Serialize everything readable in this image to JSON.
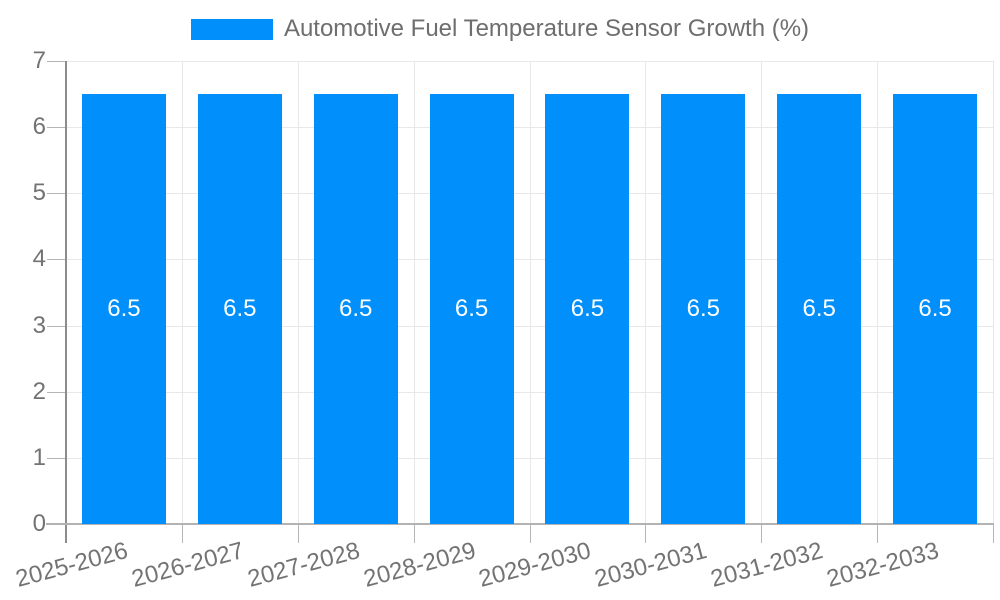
{
  "legend": {
    "label": "Automotive Fuel Temperature Sensor Growth (%)"
  },
  "chart_data": {
    "type": "bar",
    "title": "Automotive Fuel Temperature Sensor Growth (%)",
    "categories": [
      "2025-2026",
      "2026-2027",
      "2027-2028",
      "2028-2029",
      "2029-2030",
      "2030-2031",
      "2031-2032",
      "2032-2033"
    ],
    "series": [
      {
        "name": "Automotive Fuel Temperature Sensor Growth (%)",
        "values": [
          6.5,
          6.5,
          6.5,
          6.5,
          6.5,
          6.5,
          6.5,
          6.5
        ]
      }
    ],
    "value_labels": [
      "6.5",
      "6.5",
      "6.5",
      "6.5",
      "6.5",
      "6.5",
      "6.5",
      "6.5"
    ],
    "xlabel": "",
    "ylabel": "",
    "ylim": [
      0,
      7
    ],
    "yticks": [
      0,
      1,
      2,
      3,
      4,
      5,
      6,
      7
    ],
    "grid": true,
    "legend_position": "top",
    "colors": {
      "bar": "#008FFB",
      "value_label": "#FFFFFF",
      "axis_label": "#737373",
      "legend_text": "#6E6E6E",
      "gridline": "#E8E8E8",
      "tick": "#B5B5B5",
      "y_axis_line": "#8C8C8C",
      "x_axis_line": "#B3B3B3",
      "background": "#FFFFFF"
    }
  }
}
